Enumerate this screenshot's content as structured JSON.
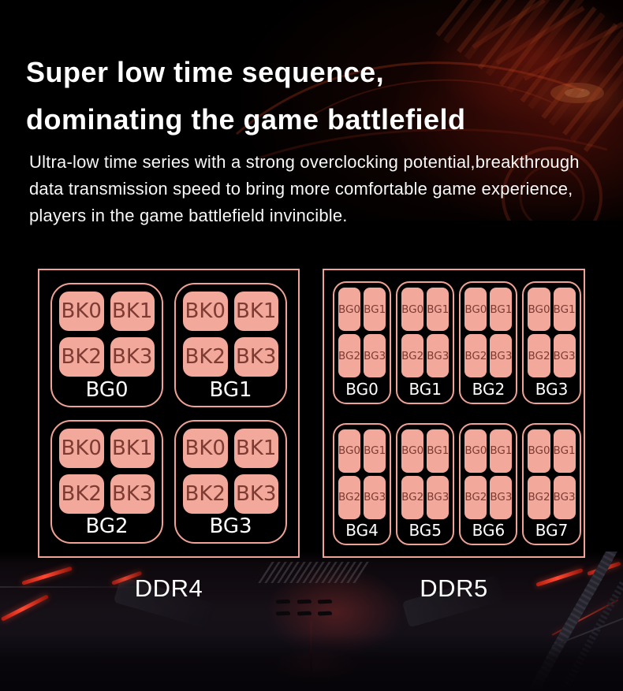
{
  "header": {
    "title_line1": "Super low time sequence,",
    "title_line2": "dominating the game battlefield",
    "paragraph_lines": [
      "Ultra-low time series with a strong overclocking potential,breakthrough",
      "data transmission speed to bring more comfortable game experience,",
      "players in the game battlefield invincible."
    ]
  },
  "diagram": {
    "ddr4": {
      "caption": "DDR4",
      "groups": [
        {
          "label": "BG0",
          "cells": [
            "BK0",
            "BK1",
            "BK2",
            "BK3"
          ]
        },
        {
          "label": "BG1",
          "cells": [
            "BK0",
            "BK1",
            "BK2",
            "BK3"
          ]
        },
        {
          "label": "BG2",
          "cells": [
            "BK0",
            "BK1",
            "BK2",
            "BK3"
          ]
        },
        {
          "label": "BG3",
          "cells": [
            "BK0",
            "BK1",
            "BK2",
            "BK3"
          ]
        }
      ]
    },
    "ddr5": {
      "caption": "DDR5",
      "groups": [
        {
          "label": "BG0",
          "cells": [
            "BG0",
            "BG1",
            "BG2",
            "BG3"
          ]
        },
        {
          "label": "BG1",
          "cells": [
            "BG0",
            "BG1",
            "BG2",
            "BG3"
          ]
        },
        {
          "label": "BG2",
          "cells": [
            "BG0",
            "BG1",
            "BG2",
            "BG3"
          ]
        },
        {
          "label": "BG3",
          "cells": [
            "BG0",
            "BG1",
            "BG2",
            "BG3"
          ]
        },
        {
          "label": "BG4",
          "cells": [
            "BG0",
            "BG1",
            "BG2",
            "BG3"
          ]
        },
        {
          "label": "BG5",
          "cells": [
            "BG0",
            "BG1",
            "BG2",
            "BG3"
          ]
        },
        {
          "label": "BG6",
          "cells": [
            "BG0",
            "BG1",
            "BG2",
            "BG3"
          ]
        },
        {
          "label": "BG7",
          "cells": [
            "BG0",
            "BG1",
            "BG2",
            "BG3"
          ]
        }
      ]
    }
  },
  "colors": {
    "cell_fill": "#f2a89b",
    "cell_border": "#efa295",
    "cell_text": "#7d3b32",
    "label_text": "#ffffff",
    "background": "#000000",
    "accent_red": "#ff4832"
  }
}
